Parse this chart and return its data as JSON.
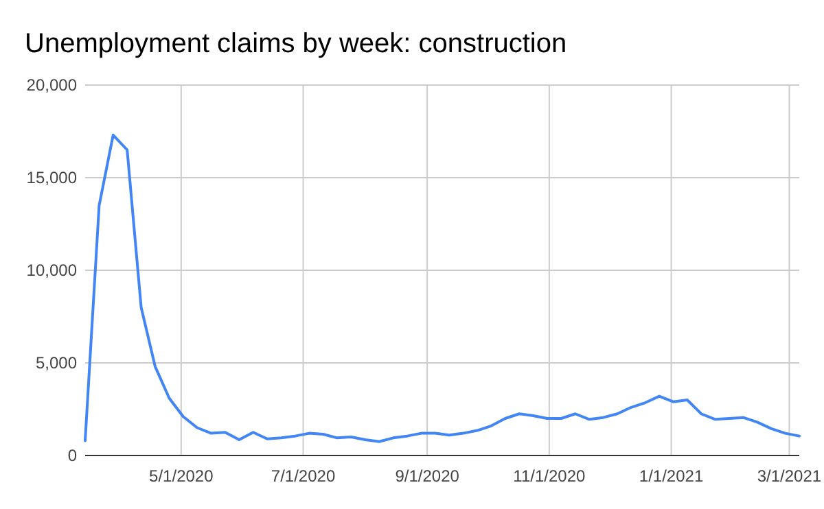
{
  "chart_data": {
    "type": "line",
    "title": "Unemployment claims by week: construction",
    "x": [
      "2020-03-14",
      "2020-03-21",
      "2020-03-28",
      "2020-04-04",
      "2020-04-11",
      "2020-04-18",
      "2020-04-25",
      "2020-05-02",
      "2020-05-09",
      "2020-05-16",
      "2020-05-23",
      "2020-05-30",
      "2020-06-06",
      "2020-06-13",
      "2020-06-20",
      "2020-06-27",
      "2020-07-04",
      "2020-07-11",
      "2020-07-18",
      "2020-07-25",
      "2020-08-01",
      "2020-08-08",
      "2020-08-15",
      "2020-08-22",
      "2020-08-29",
      "2020-09-05",
      "2020-09-12",
      "2020-09-19",
      "2020-09-26",
      "2020-10-03",
      "2020-10-10",
      "2020-10-17",
      "2020-10-24",
      "2020-10-31",
      "2020-11-07",
      "2020-11-14",
      "2020-11-21",
      "2020-11-28",
      "2020-12-05",
      "2020-12-12",
      "2020-12-19",
      "2020-12-26",
      "2021-01-02",
      "2021-01-09",
      "2021-01-16",
      "2021-01-23",
      "2021-01-30",
      "2021-02-06",
      "2021-02-13",
      "2021-02-20",
      "2021-02-27",
      "2021-03-06"
    ],
    "series": [
      {
        "color": "#4285f4",
        "values": [
          800,
          13500,
          17300,
          16500,
          8000,
          4800,
          3100,
          2100,
          1500,
          1200,
          1250,
          850,
          1250,
          900,
          950,
          1050,
          1200,
          1150,
          950,
          1000,
          850,
          750,
          950,
          1050,
          1200,
          1200,
          1100,
          1200,
          1350,
          1600,
          2000,
          2250,
          2150,
          2000,
          2000,
          2250,
          1950,
          2050,
          2250,
          2600,
          2850,
          3200,
          2900,
          3000,
          2250,
          1950,
          2000,
          2050,
          1800,
          1450,
          1200,
          1050
        ]
      }
    ],
    "xlim": [
      "2020-03-14",
      "2021-03-06"
    ],
    "xticks": [
      {
        "value": "2020-05-01",
        "label": "5/1/2020"
      },
      {
        "value": "2020-07-01",
        "label": "7/1/2020"
      },
      {
        "value": "2020-09-01",
        "label": "9/1/2020"
      },
      {
        "value": "2020-11-01",
        "label": "11/1/2020"
      },
      {
        "value": "2021-01-01",
        "label": "1/1/2021"
      },
      {
        "value": "2021-03-01",
        "label": "3/1/2021"
      }
    ],
    "ylim": [
      0,
      20000
    ],
    "yticks": [
      {
        "value": 0,
        "label": "0"
      },
      {
        "value": 5000,
        "label": "5,000"
      },
      {
        "value": 10000,
        "label": "10,000"
      },
      {
        "value": 15000,
        "label": "15,000"
      },
      {
        "value": 20000,
        "label": "20,000"
      }
    ],
    "grid": true,
    "marker": "none",
    "line_style": "solid"
  }
}
